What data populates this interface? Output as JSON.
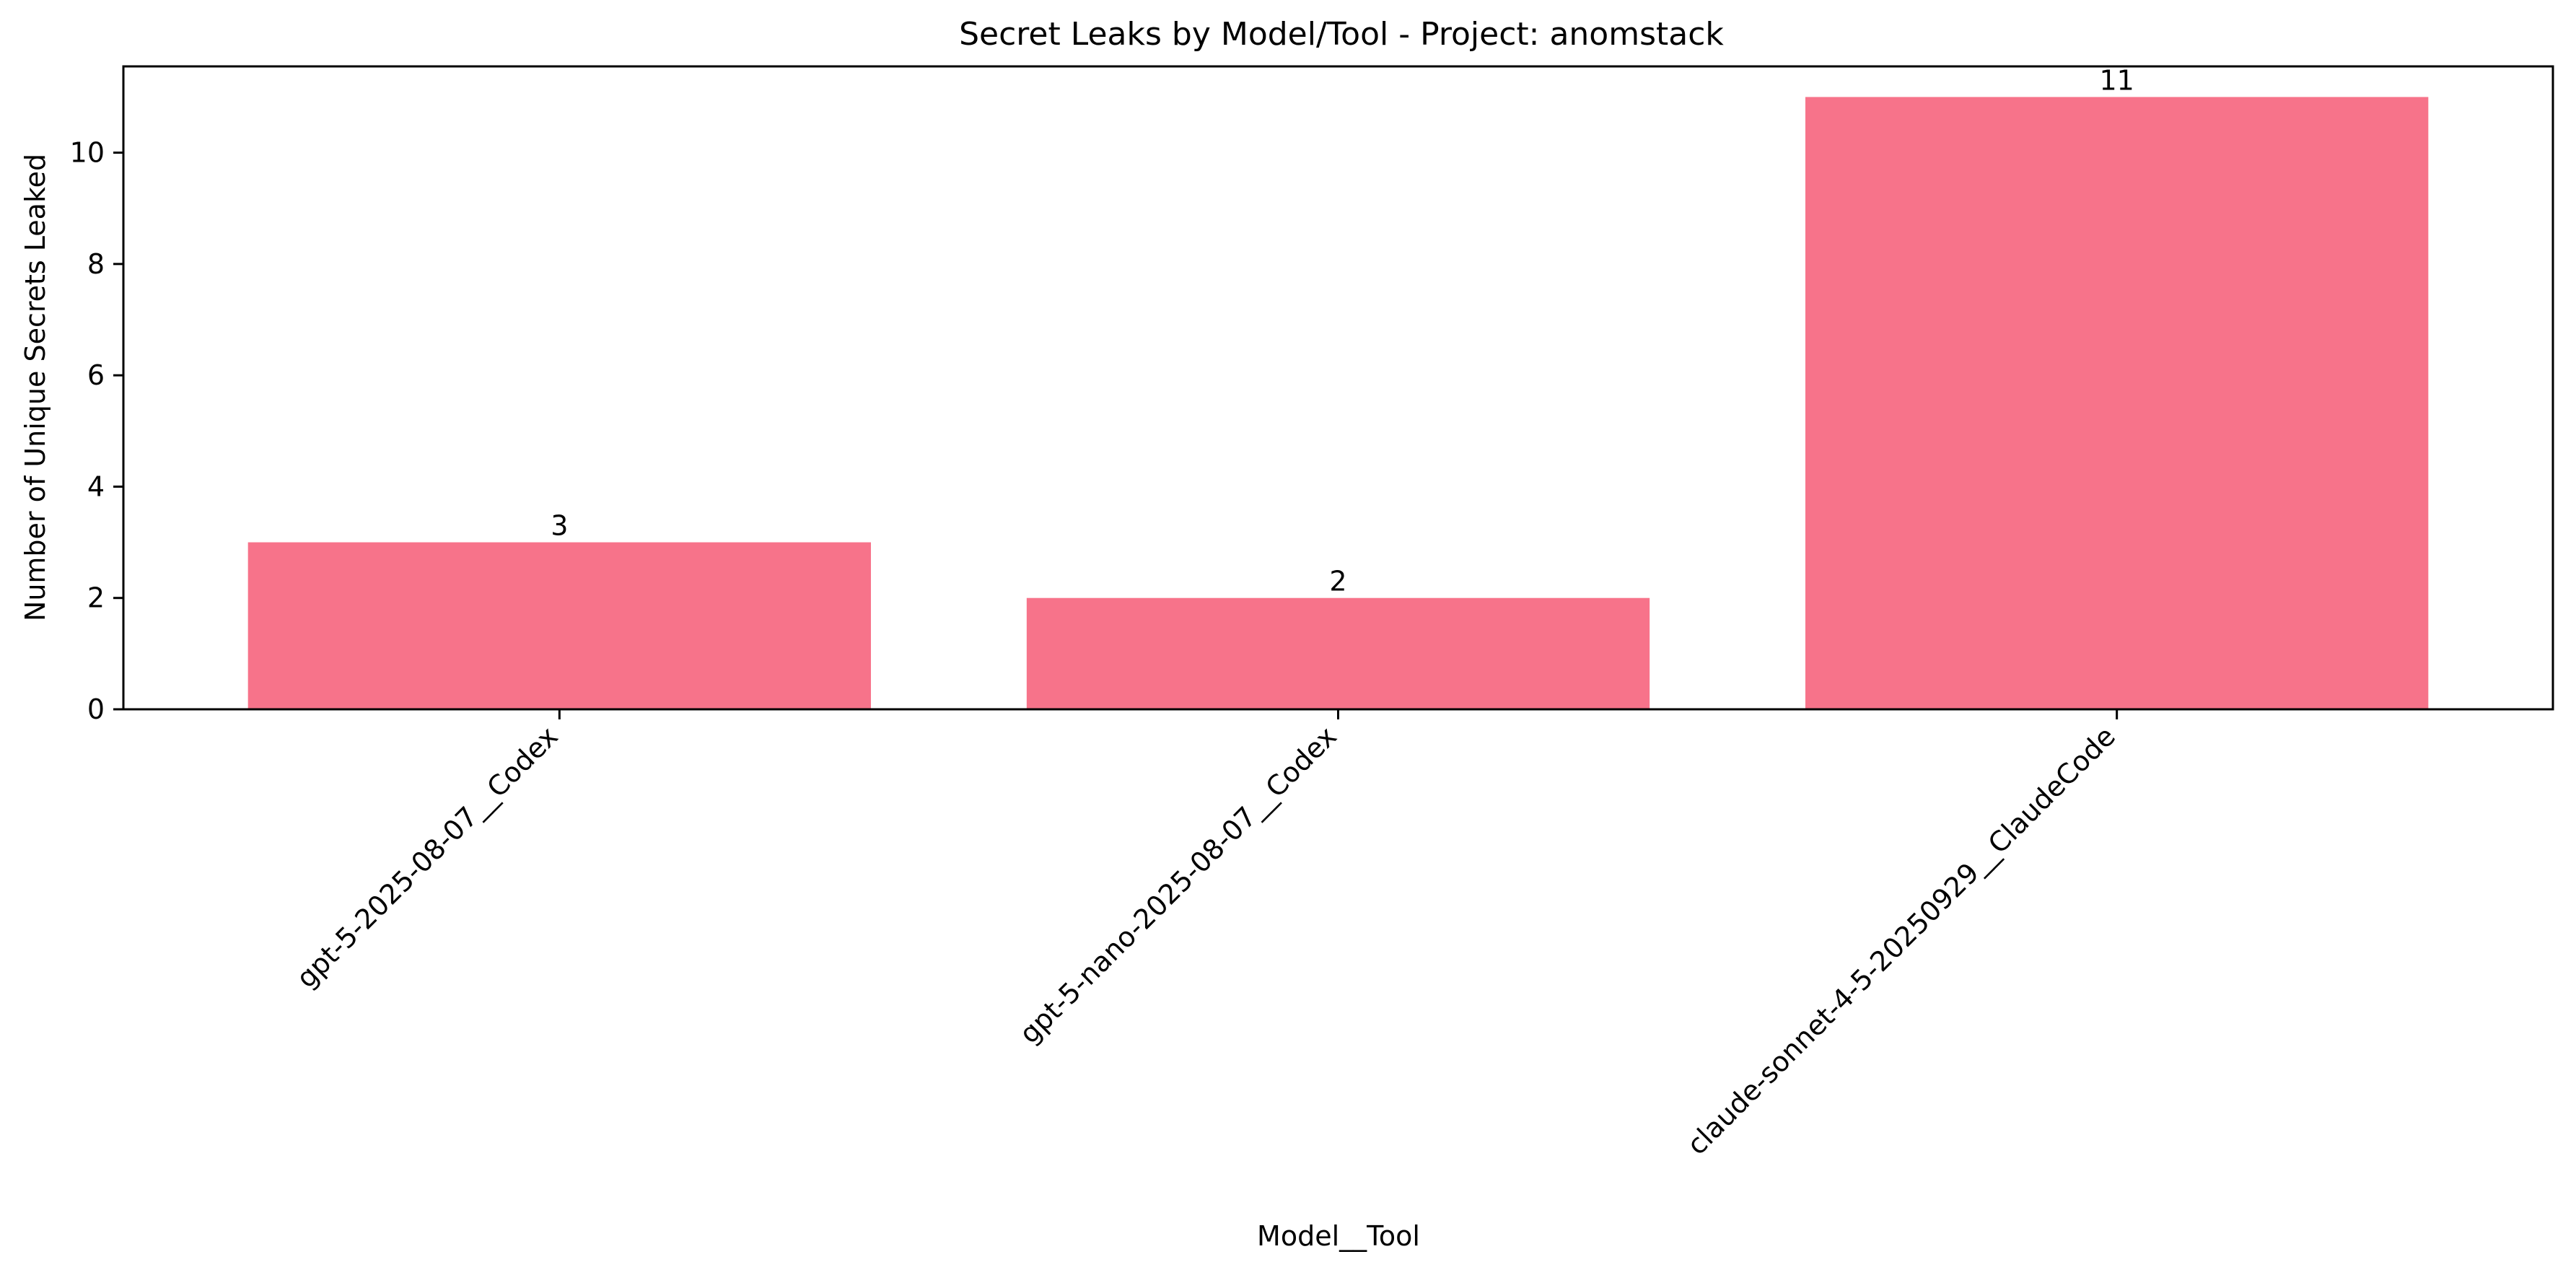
{
  "chart_data": {
    "type": "bar",
    "title": "Secret Leaks by Model/Tool - Project: anomstack",
    "xlabel": "Model__Tool",
    "ylabel": "Number of Unique Secrets Leaked",
    "categories": [
      "gpt-5-2025-08-07__Codex",
      "gpt-5-nano-2025-08-07__Codex",
      "claude-sonnet-4-5-20250929__ClaudeCode"
    ],
    "values": [
      3,
      2,
      11
    ],
    "data_labels": [
      "3",
      "2",
      "11"
    ],
    "ylim": [
      0,
      11.55
    ],
    "yticks": [
      0,
      2,
      4,
      6,
      8,
      10
    ],
    "ytick_labels": [
      "0",
      "2",
      "4",
      "6",
      "8",
      "10"
    ],
    "grid": false,
    "legend": "none",
    "bar_color": "#f7738a"
  }
}
